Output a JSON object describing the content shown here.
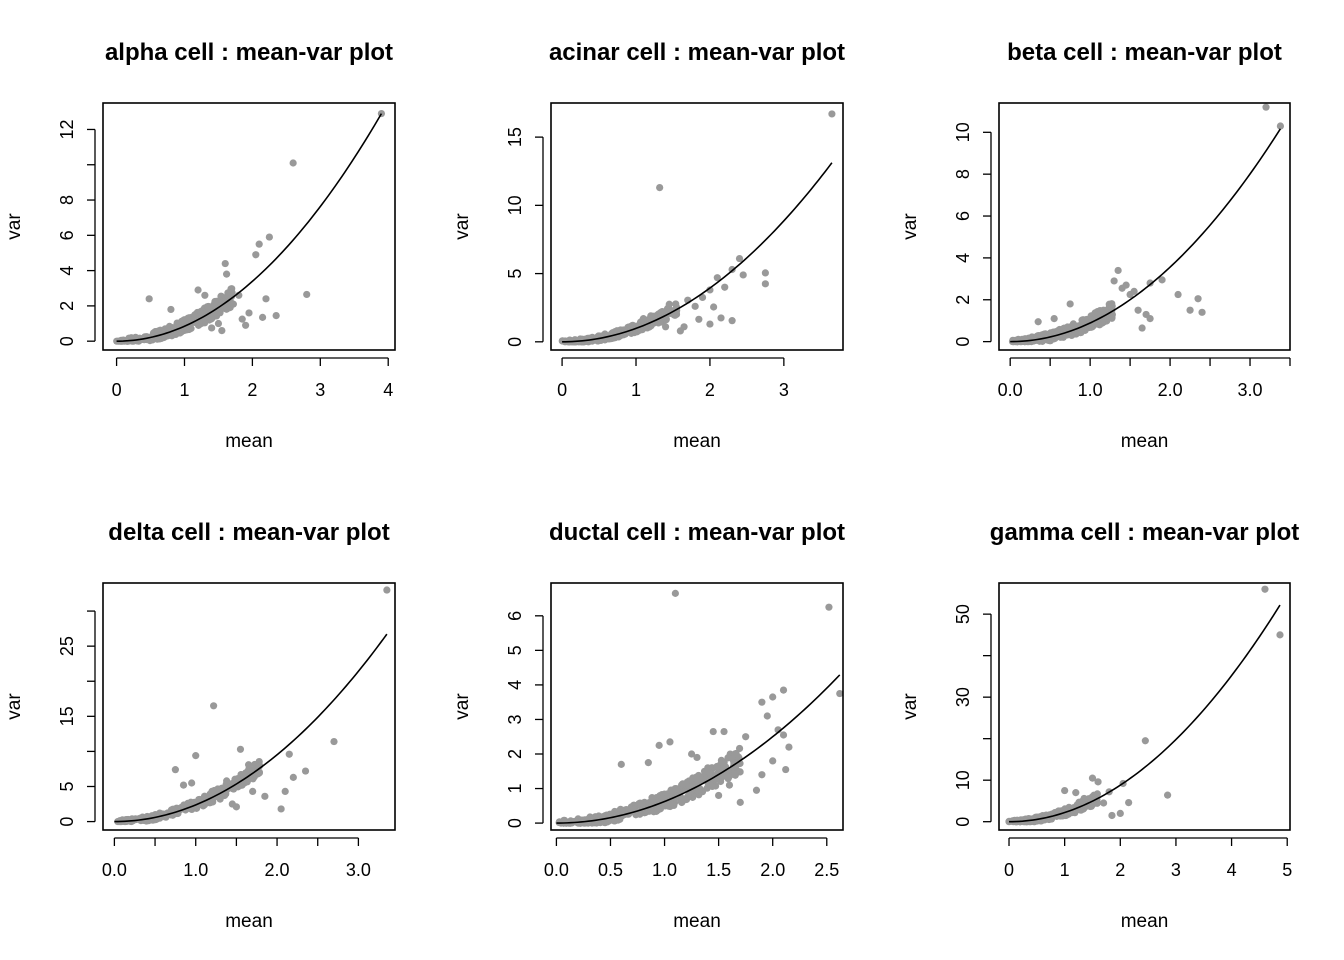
{
  "chart_data": [
    {
      "type": "scatter",
      "title": "alpha cell : mean-var plot",
      "xlabel": "mean",
      "ylabel": "var",
      "xlim": [
        -0.2,
        4.1
      ],
      "ylim": [
        -0.5,
        13.5
      ],
      "xticks": [
        0,
        1,
        2,
        3,
        4
      ],
      "xtick_labels": [
        "0",
        "1",
        "2",
        "3",
        "4"
      ],
      "yticks": [
        0,
        2,
        4,
        6,
        8,
        10,
        12
      ],
      "ytick_labels": [
        "0",
        "2",
        "4",
        "6",
        "8",
        "",
        "12"
      ],
      "point_color": "#999999",
      "curve": {
        "a": 0.848,
        "p": 2
      },
      "cluster_gen": {
        "n": 260,
        "xmax": 1.7,
        "noise": 0.55,
        "seed": 11
      },
      "points": [
        [
          0.48,
          2.4
        ],
        [
          0.8,
          1.8
        ],
        [
          1.05,
          1.3
        ],
        [
          1.2,
          2.9
        ],
        [
          1.3,
          2.6
        ],
        [
          1.35,
          1.95
        ],
        [
          1.45,
          2.25
        ],
        [
          1.5,
          1.0
        ],
        [
          1.6,
          4.4
        ],
        [
          1.62,
          3.8
        ],
        [
          1.7,
          2.75
        ],
        [
          1.72,
          2.1
        ],
        [
          1.8,
          2.6
        ],
        [
          1.85,
          1.25
        ],
        [
          1.9,
          0.9
        ],
        [
          1.95,
          1.6
        ],
        [
          2.05,
          4.9
        ],
        [
          2.1,
          5.5
        ],
        [
          2.15,
          1.35
        ],
        [
          2.25,
          5.9
        ],
        [
          2.2,
          2.4
        ],
        [
          2.35,
          1.45
        ],
        [
          2.6,
          10.1
        ],
        [
          2.8,
          2.65
        ],
        [
          3.9,
          12.9
        ],
        [
          1.25,
          1.55
        ],
        [
          1.4,
          0.75
        ],
        [
          1.55,
          0.6
        ]
      ]
    },
    {
      "type": "scatter",
      "title": "acinar cell : mean-var plot",
      "xlabel": "mean",
      "ylabel": "var",
      "xlim": [
        -0.15,
        3.8
      ],
      "ylim": [
        -0.6,
        17.5
      ],
      "xticks": [
        0,
        1,
        2,
        3
      ],
      "xtick_labels": [
        "0",
        "1",
        "2",
        "3"
      ],
      "yticks": [
        0,
        5,
        10,
        15
      ],
      "ytick_labels": [
        "0",
        "5",
        "10",
        "15"
      ],
      "point_color": "#999999",
      "curve": {
        "a": 0.985,
        "p": 2
      },
      "cluster_gen": {
        "n": 240,
        "xmax": 1.55,
        "noise": 0.5,
        "seed": 23
      },
      "points": [
        [
          1.32,
          11.3
        ],
        [
          1.1,
          1.7
        ],
        [
          1.2,
          1.9
        ],
        [
          1.35,
          2.2
        ],
        [
          1.45,
          2.75
        ],
        [
          1.55,
          2.3
        ],
        [
          1.7,
          3.05
        ],
        [
          1.8,
          2.6
        ],
        [
          1.9,
          3.25
        ],
        [
          2.0,
          3.8
        ],
        [
          2.05,
          2.55
        ],
        [
          2.1,
          4.7
        ],
        [
          2.2,
          4.0
        ],
        [
          2.3,
          5.3
        ],
        [
          2.4,
          6.1
        ],
        [
          2.45,
          4.9
        ],
        [
          2.3,
          1.55
        ],
        [
          2.15,
          1.75
        ],
        [
          2.0,
          1.3
        ],
        [
          1.85,
          1.65
        ],
        [
          1.65,
          1.1
        ],
        [
          2.75,
          5.05
        ],
        [
          2.75,
          4.25
        ],
        [
          3.65,
          16.7
        ],
        [
          1.6,
          0.8
        ],
        [
          1.4,
          1.1
        ]
      ]
    },
    {
      "type": "scatter",
      "title": "beta cell : mean-var plot",
      "xlabel": "mean",
      "ylabel": "var",
      "xlim": [
        -0.14,
        3.5
      ],
      "ylim": [
        -0.4,
        11.4
      ],
      "xticks": [
        0,
        0.5,
        1.0,
        1.5,
        2.0,
        2.5,
        3.0,
        3.5
      ],
      "xtick_labels": [
        "0.0",
        "",
        "1.0",
        "",
        "2.0",
        "",
        "3.0",
        ""
      ],
      "yticks": [
        0,
        2,
        4,
        6,
        8,
        10
      ],
      "ytick_labels": [
        "0",
        "2",
        "4",
        "6",
        "8",
        "10"
      ],
      "point_color": "#999999",
      "curve": {
        "a": 0.89,
        "p": 2
      },
      "cluster_gen": {
        "n": 260,
        "xmax": 1.3,
        "noise": 0.5,
        "seed": 37
      },
      "points": [
        [
          1.3,
          2.9
        ],
        [
          1.35,
          3.4
        ],
        [
          1.4,
          2.55
        ],
        [
          1.45,
          2.7
        ],
        [
          1.5,
          2.25
        ],
        [
          1.55,
          2.4
        ],
        [
          1.6,
          1.5
        ],
        [
          1.7,
          1.3
        ],
        [
          1.75,
          2.8
        ],
        [
          1.75,
          1.1
        ],
        [
          1.9,
          2.95
        ],
        [
          2.1,
          2.25
        ],
        [
          2.25,
          1.5
        ],
        [
          2.35,
          2.05
        ],
        [
          2.4,
          1.4
        ],
        [
          1.65,
          0.65
        ],
        [
          3.2,
          11.2
        ],
        [
          3.38,
          10.3
        ],
        [
          0.55,
          1.1
        ],
        [
          0.35,
          0.95
        ],
        [
          0.75,
          1.8
        ]
      ]
    },
    {
      "type": "scatter",
      "title": "delta cell : mean-var plot",
      "xlabel": "mean",
      "ylabel": "var",
      "xlim": [
        -0.14,
        3.45
      ],
      "ylim": [
        -1.2,
        34.0
      ],
      "xticks": [
        0,
        0.5,
        1.0,
        1.5,
        2.0,
        2.5,
        3.0
      ],
      "xtick_labels": [
        "0.0",
        "",
        "1.0",
        "",
        "2.0",
        "",
        "3.0"
      ],
      "yticks": [
        0,
        5,
        10,
        15,
        20,
        25,
        30
      ],
      "ytick_labels": [
        "0",
        "5",
        "",
        "15",
        "",
        "25",
        ""
      ],
      "point_color": "#999999",
      "curve": {
        "a": 2.38,
        "p": 2
      },
      "cluster_gen": {
        "n": 220,
        "xmax": 1.8,
        "noise": 1.0,
        "seed": 41
      },
      "points": [
        [
          0.75,
          7.4
        ],
        [
          0.85,
          5.2
        ],
        [
          0.95,
          5.5
        ],
        [
          1.0,
          9.4
        ],
        [
          1.1,
          3.3
        ],
        [
          1.2,
          4.3
        ],
        [
          1.22,
          16.5
        ],
        [
          1.3,
          3.2
        ],
        [
          1.38,
          5.8
        ],
        [
          1.45,
          2.5
        ],
        [
          1.55,
          10.3
        ],
        [
          1.6,
          5.5
        ],
        [
          1.65,
          8.1
        ],
        [
          1.7,
          4.3
        ],
        [
          1.78,
          7.9
        ],
        [
          1.85,
          3.6
        ],
        [
          2.05,
          1.8
        ],
        [
          2.1,
          4.3
        ],
        [
          2.15,
          9.6
        ],
        [
          2.2,
          6.3
        ],
        [
          2.35,
          7.2
        ],
        [
          2.7,
          11.4
        ],
        [
          3.35,
          33.0
        ],
        [
          1.5,
          2.1
        ]
      ]
    },
    {
      "type": "scatter",
      "title": "ductal cell : mean-var plot",
      "xlabel": "mean",
      "ylabel": "var",
      "xlim": [
        -0.05,
        2.65
      ],
      "ylim": [
        -0.2,
        6.95
      ],
      "xticks": [
        0,
        0.5,
        1.0,
        1.5,
        2.0,
        2.5
      ],
      "xtick_labels": [
        "0.0",
        "0.5",
        "1.0",
        "1.5",
        "2.0",
        "2.5"
      ],
      "yticks": [
        0,
        1,
        2,
        3,
        4,
        5,
        6
      ],
      "ytick_labels": [
        "0",
        "1",
        "2",
        "3",
        "4",
        "5",
        "6"
      ],
      "point_color": "#999999",
      "curve": {
        "a": 0.625,
        "p": 2
      },
      "cluster_gen": {
        "n": 330,
        "xmax": 1.7,
        "noise": 0.38,
        "seed": 53
      },
      "points": [
        [
          1.1,
          6.65
        ],
        [
          2.52,
          6.25
        ],
        [
          2.62,
          3.75
        ],
        [
          2.1,
          3.85
        ],
        [
          2.0,
          3.65
        ],
        [
          1.9,
          3.5
        ],
        [
          2.15,
          2.2
        ],
        [
          2.1,
          2.55
        ],
        [
          2.12,
          1.55
        ],
        [
          2.0,
          1.8
        ],
        [
          1.9,
          1.4
        ],
        [
          1.85,
          0.95
        ],
        [
          1.75,
          2.5
        ],
        [
          1.65,
          2.0
        ],
        [
          1.55,
          2.65
        ],
        [
          1.6,
          1.1
        ],
        [
          1.45,
          2.65
        ],
        [
          1.4,
          1.6
        ],
        [
          1.3,
          1.9
        ],
        [
          1.25,
          2.0
        ],
        [
          1.05,
          2.35
        ],
        [
          0.95,
          2.25
        ],
        [
          0.85,
          1.75
        ],
        [
          0.6,
          1.7
        ],
        [
          1.5,
          0.8
        ],
        [
          1.95,
          3.1
        ],
        [
          2.05,
          2.7
        ],
        [
          1.7,
          0.6
        ]
      ]
    },
    {
      "type": "scatter",
      "title": "gamma cell : mean-var plot",
      "xlabel": "mean",
      "ylabel": "var",
      "xlim": [
        -0.18,
        5.05
      ],
      "ylim": [
        -2.0,
        57.5
      ],
      "xticks": [
        0,
        1,
        2,
        3,
        4,
        5
      ],
      "xtick_labels": [
        "0",
        "1",
        "2",
        "3",
        "4",
        "5"
      ],
      "yticks": [
        0,
        10,
        20,
        30,
        40,
        50
      ],
      "ytick_labels": [
        "0",
        "10",
        "",
        "30",
        "",
        "50"
      ],
      "point_color": "#999999",
      "curve": {
        "a": 2.2,
        "p": 2
      },
      "cluster_gen": {
        "n": 220,
        "xmax": 1.6,
        "noise": 1.4,
        "seed": 67
      },
      "points": [
        [
          1.0,
          7.5
        ],
        [
          1.2,
          7.0
        ],
        [
          1.35,
          5.6
        ],
        [
          1.5,
          10.5
        ],
        [
          1.6,
          9.6
        ],
        [
          1.7,
          4.5
        ],
        [
          1.8,
          7.2
        ],
        [
          2.0,
          2.0
        ],
        [
          2.05,
          9.2
        ],
        [
          2.15,
          4.6
        ],
        [
          2.45,
          19.5
        ],
        [
          2.85,
          6.4
        ],
        [
          4.6,
          56.0
        ],
        [
          4.87,
          45.0
        ],
        [
          1.85,
          1.5
        ]
      ]
    }
  ]
}
